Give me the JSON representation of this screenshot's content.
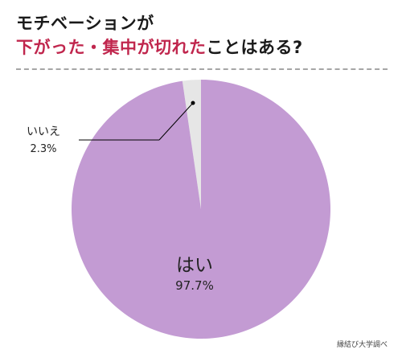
{
  "title": {
    "line1": "モチベーションが",
    "line2_highlight": "下がった・集中が切れた",
    "line2_rest": "ことはある?"
  },
  "chart_data": {
    "type": "pie",
    "slices": [
      {
        "label": "はい",
        "value": 97.7,
        "value_label": "97.7%",
        "color": "#c39bd3"
      },
      {
        "label": "いいえ",
        "value": 2.3,
        "value_label": "2.3%",
        "color": "#e6e6e6"
      }
    ],
    "legend": "none",
    "start": "12 o'clock, clockwise"
  },
  "colors": {
    "title": "#1a1a1a",
    "highlight": "#c0264d",
    "divider": "#a6a6a6"
  },
  "source_credit": "縁結び大学調べ"
}
